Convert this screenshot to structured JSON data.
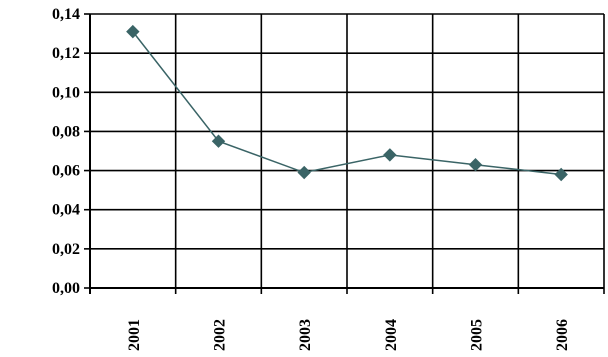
{
  "chart_data": {
    "type": "line",
    "title": "",
    "xlabel": "",
    "ylabel": "",
    "categories": [
      "2001",
      "2002",
      "2003",
      "2004",
      "2005",
      "2006"
    ],
    "series": [
      {
        "values": [
          0.131,
          0.075,
          0.059,
          0.068,
          0.063,
          0.058
        ]
      }
    ],
    "ylim": [
      0,
      0.14
    ],
    "yticks": [
      0.0,
      0.02,
      0.04,
      0.06,
      0.08,
      0.1,
      0.12,
      0.14
    ],
    "ytick_labels": [
      "0,00",
      "0,02",
      "0,04",
      "0,06",
      "0,08",
      "0,10",
      "0,12",
      "0,14"
    ],
    "grid": true,
    "legend": "none",
    "colors": {
      "line": "#3a6466",
      "marker": "#3a6466",
      "grid": "#000000"
    }
  }
}
